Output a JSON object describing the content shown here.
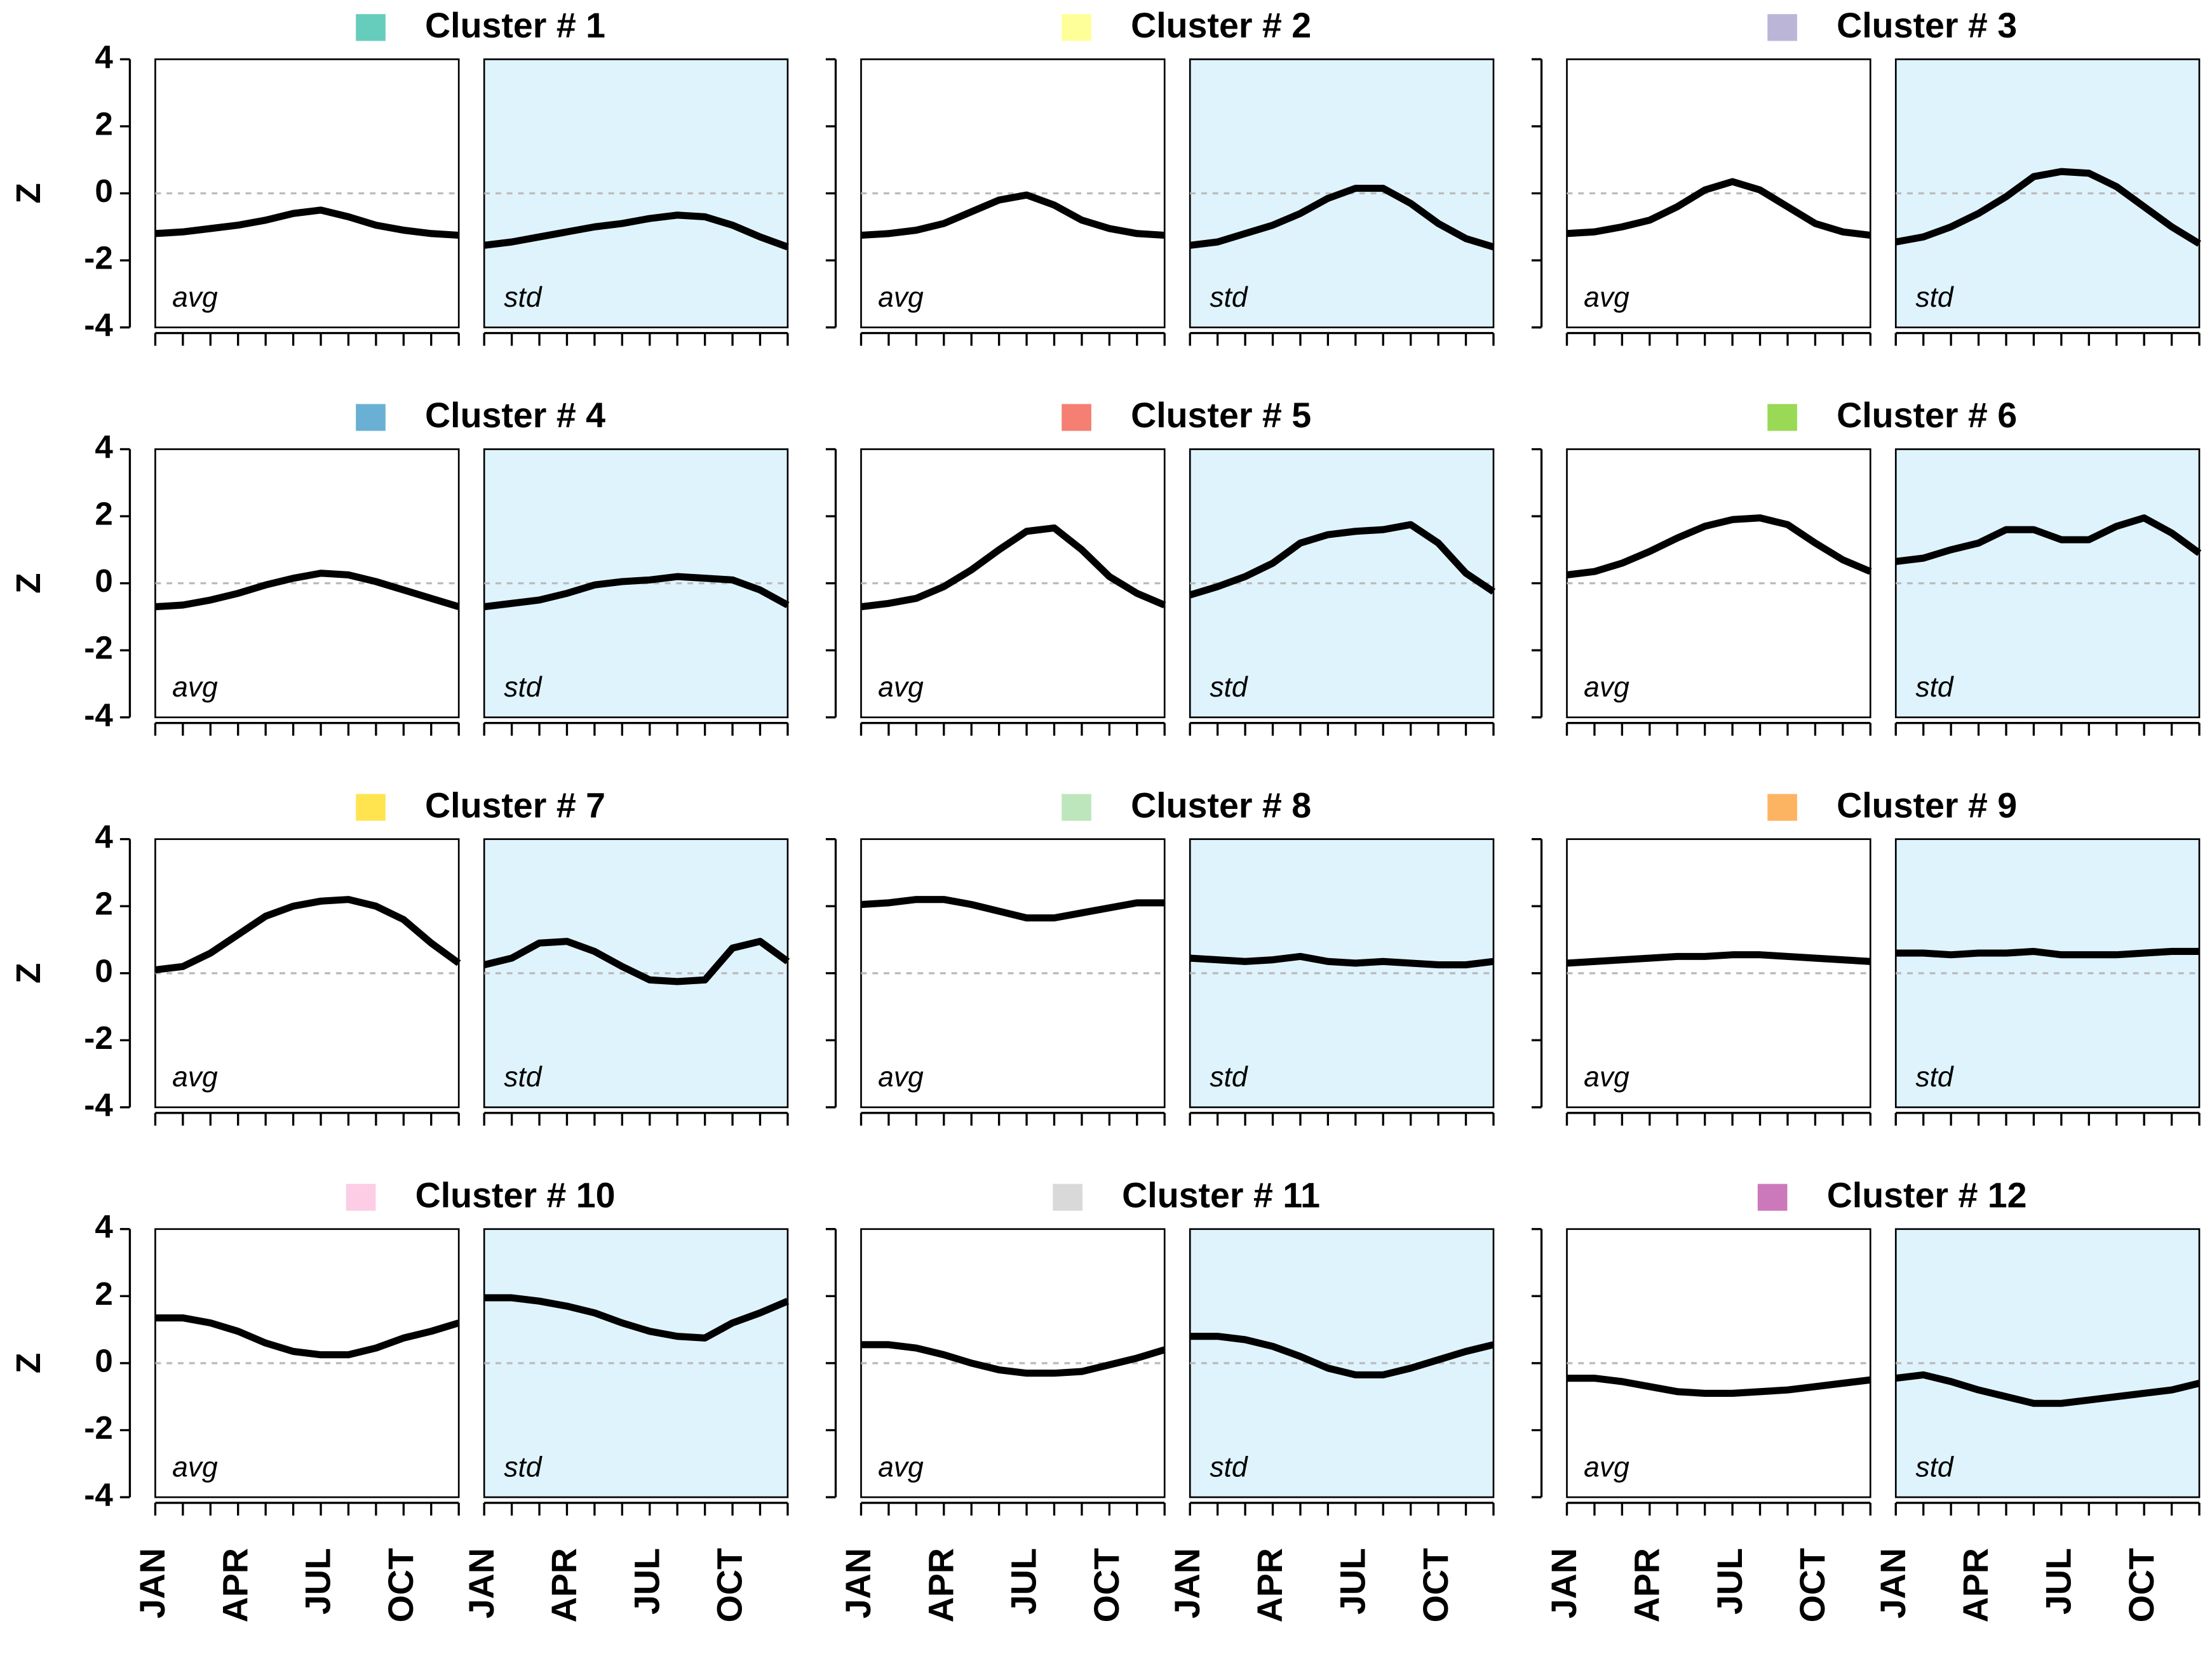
{
  "chart_data": {
    "type": "line",
    "ylabel": "Z",
    "ylim": [
      -4,
      4
    ],
    "yticks": [
      -4,
      -2,
      0,
      2,
      4
    ],
    "categories": [
      "JAN",
      null,
      null,
      "APR",
      null,
      null,
      "JUL",
      null,
      null,
      "OCT",
      null,
      null
    ],
    "panels": [
      {
        "title": "Cluster # 1",
        "color": "#66ccbb",
        "series": [
          {
            "name": "avg",
            "values": [
              -1.2,
              -1.15,
              -1.05,
              -0.95,
              -0.8,
              -0.6,
              -0.5,
              -0.7,
              -0.95,
              -1.1,
              -1.2,
              -1.25
            ]
          },
          {
            "name": "std",
            "values": [
              -1.55,
              -1.45,
              -1.3,
              -1.15,
              -1.0,
              -0.9,
              -0.75,
              -0.65,
              -0.7,
              -0.95,
              -1.3,
              -1.6
            ]
          }
        ]
      },
      {
        "title": "Cluster # 2",
        "color": "#ffff99",
        "series": [
          {
            "name": "avg",
            "values": [
              -1.25,
              -1.2,
              -1.1,
              -0.9,
              -0.55,
              -0.2,
              -0.05,
              -0.35,
              -0.8,
              -1.05,
              -1.2,
              -1.25
            ]
          },
          {
            "name": "std",
            "values": [
              -1.55,
              -1.45,
              -1.2,
              -0.95,
              -0.6,
              -0.15,
              0.15,
              0.15,
              -0.3,
              -0.9,
              -1.35,
              -1.6
            ]
          }
        ]
      },
      {
        "title": "Cluster # 3",
        "color": "#bbb5d8",
        "series": [
          {
            "name": "avg",
            "values": [
              -1.2,
              -1.15,
              -1.0,
              -0.8,
              -0.4,
              0.1,
              0.35,
              0.1,
              -0.4,
              -0.9,
              -1.15,
              -1.25
            ]
          },
          {
            "name": "std",
            "values": [
              -1.45,
              -1.3,
              -1.0,
              -0.6,
              -0.1,
              0.5,
              0.65,
              0.6,
              0.2,
              -0.4,
              -1.0,
              -1.5
            ]
          }
        ]
      },
      {
        "title": "Cluster # 4",
        "color": "#6ab0d4",
        "series": [
          {
            "name": "avg",
            "values": [
              -0.7,
              -0.65,
              -0.5,
              -0.3,
              -0.05,
              0.15,
              0.3,
              0.25,
              0.05,
              -0.2,
              -0.45,
              -0.7
            ]
          },
          {
            "name": "std",
            "values": [
              -0.7,
              -0.6,
              -0.5,
              -0.3,
              -0.05,
              0.05,
              0.1,
              0.2,
              0.15,
              0.1,
              -0.2,
              -0.65
            ]
          }
        ]
      },
      {
        "title": "Cluster # 5",
        "color": "#f47f72",
        "series": [
          {
            "name": "avg",
            "values": [
              -0.7,
              -0.6,
              -0.45,
              -0.1,
              0.4,
              1.0,
              1.55,
              1.65,
              1.0,
              0.2,
              -0.3,
              -0.65
            ]
          },
          {
            "name": "std",
            "values": [
              -0.35,
              -0.1,
              0.2,
              0.6,
              1.2,
              1.45,
              1.55,
              1.6,
              1.75,
              1.2,
              0.3,
              -0.25
            ]
          }
        ]
      },
      {
        "title": "Cluster # 6",
        "color": "#99d955",
        "series": [
          {
            "name": "avg",
            "values": [
              0.25,
              0.35,
              0.6,
              0.95,
              1.35,
              1.7,
              1.9,
              1.95,
              1.75,
              1.2,
              0.7,
              0.35
            ]
          },
          {
            "name": "std",
            "values": [
              0.65,
              0.75,
              1.0,
              1.2,
              1.6,
              1.6,
              1.3,
              1.3,
              1.7,
              1.95,
              1.5,
              0.9
            ]
          }
        ]
      },
      {
        "title": "Cluster # 7",
        "color": "#ffe450",
        "series": [
          {
            "name": "avg",
            "values": [
              0.1,
              0.2,
              0.6,
              1.15,
              1.7,
              2.0,
              2.15,
              2.2,
              2.0,
              1.6,
              0.9,
              0.3
            ]
          },
          {
            "name": "std",
            "values": [
              0.25,
              0.45,
              0.9,
              0.95,
              0.65,
              0.2,
              -0.2,
              -0.25,
              -0.2,
              0.75,
              0.95,
              0.35
            ]
          }
        ]
      },
      {
        "title": "Cluster # 8",
        "color": "#bde6bd",
        "series": [
          {
            "name": "avg",
            "values": [
              2.05,
              2.1,
              2.2,
              2.2,
              2.05,
              1.85,
              1.65,
              1.65,
              1.8,
              1.95,
              2.1,
              2.1
            ]
          },
          {
            "name": "std",
            "values": [
              0.45,
              0.4,
              0.35,
              0.4,
              0.5,
              0.35,
              0.3,
              0.35,
              0.3,
              0.25,
              0.25,
              0.35
            ]
          }
        ]
      },
      {
        "title": "Cluster # 9",
        "color": "#fdb462",
        "series": [
          {
            "name": "avg",
            "values": [
              0.3,
              0.35,
              0.4,
              0.45,
              0.5,
              0.5,
              0.55,
              0.55,
              0.5,
              0.45,
              0.4,
              0.35
            ]
          },
          {
            "name": "std",
            "values": [
              0.6,
              0.6,
              0.55,
              0.6,
              0.6,
              0.65,
              0.55,
              0.55,
              0.55,
              0.6,
              0.65,
              0.65
            ]
          }
        ]
      },
      {
        "title": "Cluster # 10",
        "color": "#fccde5",
        "series": [
          {
            "name": "avg",
            "values": [
              1.35,
              1.35,
              1.2,
              0.95,
              0.6,
              0.35,
              0.25,
              0.25,
              0.45,
              0.75,
              0.95,
              1.2
            ]
          },
          {
            "name": "std",
            "values": [
              1.95,
              1.95,
              1.85,
              1.7,
              1.5,
              1.2,
              0.95,
              0.8,
              0.75,
              1.2,
              1.5,
              1.85
            ]
          }
        ]
      },
      {
        "title": "Cluster # 11",
        "color": "#d9d9d9",
        "series": [
          {
            "name": "avg",
            "values": [
              0.55,
              0.55,
              0.45,
              0.25,
              0.0,
              -0.2,
              -0.3,
              -0.3,
              -0.25,
              -0.05,
              0.15,
              0.4
            ]
          },
          {
            "name": "std",
            "values": [
              0.8,
              0.8,
              0.7,
              0.5,
              0.2,
              -0.15,
              -0.35,
              -0.35,
              -0.15,
              0.1,
              0.35,
              0.55
            ]
          }
        ]
      },
      {
        "title": "Cluster # 12",
        "color": "#cc79bb",
        "series": [
          {
            "name": "avg",
            "values": [
              -0.45,
              -0.45,
              -0.55,
              -0.7,
              -0.85,
              -0.9,
              -0.9,
              -0.85,
              -0.8,
              -0.7,
              -0.6,
              -0.5
            ]
          },
          {
            "name": "std",
            "values": [
              -0.45,
              -0.35,
              -0.55,
              -0.8,
              -1.0,
              -1.2,
              -1.2,
              -1.1,
              -1.0,
              -0.9,
              -0.8,
              -0.6
            ]
          }
        ]
      }
    ]
  }
}
